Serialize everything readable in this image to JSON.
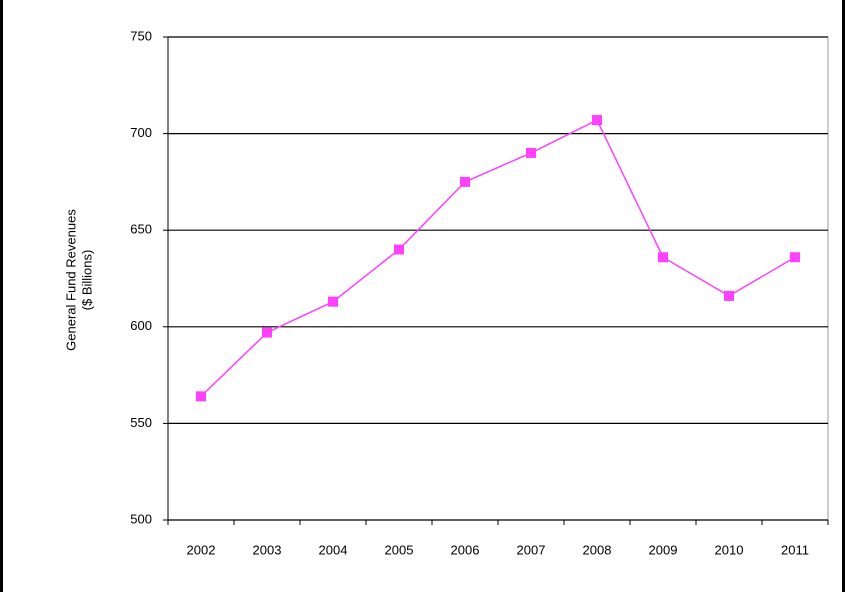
{
  "chart_data": {
    "type": "line",
    "ylabel": [
      "General Fund Revenues",
      "($ Billions)"
    ],
    "categories": [
      "2002",
      "2003",
      "2004",
      "2005",
      "2006",
      "2007",
      "2008",
      "2009",
      "2010",
      "2011"
    ],
    "series": [
      {
        "color": "#ff40ff",
        "values": [
          564,
          597,
          613,
          640,
          675,
          690,
          707,
          636,
          616,
          636
        ]
      }
    ],
    "ylim": [
      500,
      750
    ],
    "yticks": [
      500,
      550,
      600,
      650,
      700,
      750
    ],
    "grid": true
  }
}
